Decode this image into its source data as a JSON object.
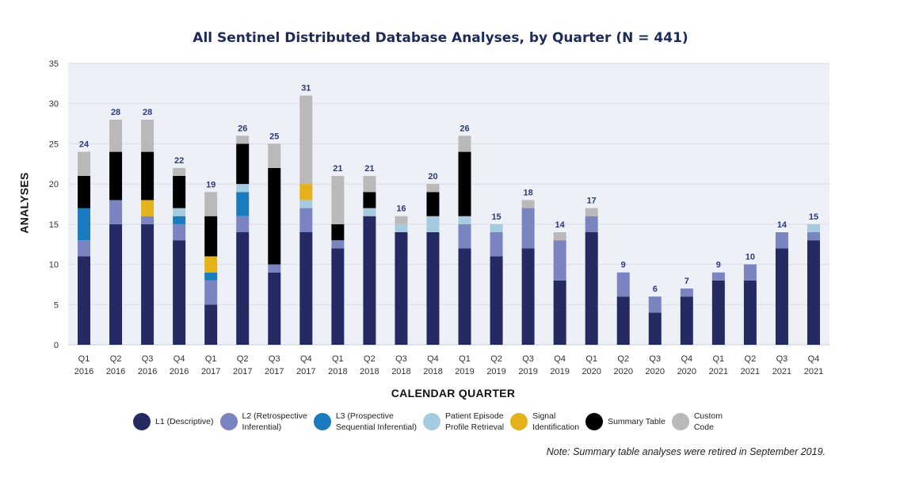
{
  "chart_data": {
    "type": "bar",
    "stacked": true,
    "title": "All Sentinel Distributed Database Analyses, by Quarter (N = 441)",
    "xlabel": "CALENDAR QUARTER",
    "ylabel": "ANALYSES",
    "ylim": [
      0,
      35
    ],
    "yticks": [
      0,
      5,
      10,
      15,
      20,
      25,
      30,
      35
    ],
    "grid": true,
    "legend_position": "bottom",
    "categories": [
      {
        "q": "Q1",
        "y": "2016"
      },
      {
        "q": "Q2",
        "y": "2016"
      },
      {
        "q": "Q3",
        "y": "2016"
      },
      {
        "q": "Q4",
        "y": "2016"
      },
      {
        "q": "Q1",
        "y": "2017"
      },
      {
        "q": "Q2",
        "y": "2017"
      },
      {
        "q": "Q3",
        "y": "2017"
      },
      {
        "q": "Q4",
        "y": "2017"
      },
      {
        "q": "Q1",
        "y": "2018"
      },
      {
        "q": "Q2",
        "y": "2018"
      },
      {
        "q": "Q3",
        "y": "2018"
      },
      {
        "q": "Q4",
        "y": "2018"
      },
      {
        "q": "Q1",
        "y": "2019"
      },
      {
        "q": "Q2",
        "y": "2019"
      },
      {
        "q": "Q3",
        "y": "2019"
      },
      {
        "q": "Q4",
        "y": "2019"
      },
      {
        "q": "Q1",
        "y": "2020"
      },
      {
        "q": "Q2",
        "y": "2020"
      },
      {
        "q": "Q3",
        "y": "2020"
      },
      {
        "q": "Q4",
        "y": "2020"
      },
      {
        "q": "Q1",
        "y": "2021"
      },
      {
        "q": "Q2",
        "y": "2021"
      },
      {
        "q": "Q3",
        "y": "2021"
      },
      {
        "q": "Q4",
        "y": "2021"
      }
    ],
    "totals": [
      24,
      28,
      28,
      22,
      19,
      26,
      25,
      31,
      21,
      21,
      16,
      20,
      26,
      15,
      18,
      14,
      17,
      9,
      6,
      7,
      9,
      10,
      14,
      15
    ],
    "series": [
      {
        "name": "L1 (Descriptive)",
        "color": "#252b62",
        "values": [
          11,
          15,
          15,
          13,
          5,
          14,
          9,
          14,
          12,
          16,
          14,
          14,
          12,
          11,
          12,
          8,
          14,
          6,
          4,
          6,
          8,
          8,
          12,
          13
        ]
      },
      {
        "name": "L2 (Retrospective\nInferential)",
        "color": "#7a84c0",
        "values": [
          2,
          3,
          1,
          2,
          3,
          2,
          1,
          3,
          1,
          0,
          0,
          0,
          3,
          3,
          5,
          5,
          2,
          3,
          2,
          1,
          1,
          2,
          2,
          1
        ]
      },
      {
        "name": "L3 (Prospective\nSequential Inferential)",
        "color": "#1b7bbf",
        "values": [
          4,
          0,
          0,
          1,
          1,
          3,
          0,
          0,
          0,
          0,
          0,
          0,
          0,
          0,
          0,
          0,
          0,
          0,
          0,
          0,
          0,
          0,
          0,
          0
        ]
      },
      {
        "name": "Patient Episode\nProfile Retrieval",
        "color": "#a6cadf",
        "values": [
          0,
          0,
          0,
          1,
          0,
          1,
          0,
          1,
          0,
          1,
          1,
          2,
          1,
          1,
          0,
          0,
          0,
          0,
          0,
          0,
          0,
          0,
          0,
          1
        ]
      },
      {
        "name": "Signal\nIdentification",
        "color": "#e5b21b",
        "values": [
          0,
          0,
          2,
          0,
          2,
          0,
          0,
          2,
          0,
          0,
          0,
          0,
          0,
          0,
          0,
          0,
          0,
          0,
          0,
          0,
          0,
          0,
          0,
          0
        ]
      },
      {
        "name": "Summary Table",
        "color": "#000000",
        "values": [
          4,
          6,
          6,
          4,
          5,
          5,
          12,
          0,
          2,
          2,
          0,
          3,
          8,
          0,
          0,
          0,
          0,
          0,
          0,
          0,
          0,
          0,
          0,
          0
        ]
      },
      {
        "name": "Custom\nCode",
        "color": "#bbb8b9",
        "values": [
          3,
          4,
          4,
          1,
          3,
          1,
          3,
          11,
          6,
          2,
          1,
          1,
          2,
          0,
          1,
          1,
          1,
          0,
          0,
          0,
          0,
          0,
          0,
          0
        ]
      }
    ],
    "note": "Note: Summary table analyses were retired in September 2019.",
    "colors": {
      "plot_bg": "#eef0f7",
      "gridline": "#d8dbe6",
      "total_label": "#2b3a78",
      "axis_text": "#333333"
    }
  }
}
